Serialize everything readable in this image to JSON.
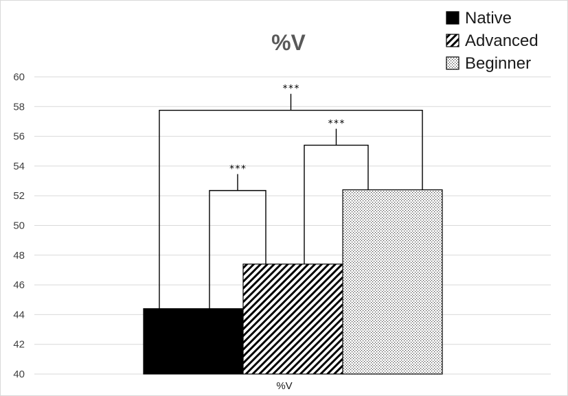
{
  "chart_data": {
    "type": "bar",
    "title": "%V",
    "categories": [
      "%V"
    ],
    "series": [
      {
        "name": "Native",
        "values": [
          44.4
        ],
        "pattern": "solid"
      },
      {
        "name": "Advanced",
        "values": [
          47.4
        ],
        "pattern": "diagonal-hatch"
      },
      {
        "name": "Beginner",
        "values": [
          52.4
        ],
        "pattern": "dots"
      }
    ],
    "ylim": [
      40,
      60
    ],
    "y_ticks": [
      40,
      42,
      44,
      46,
      48,
      50,
      52,
      54,
      56,
      58,
      60
    ],
    "xlabel": "",
    "ylabel": "",
    "grid": true,
    "legend_position": "top-right",
    "annotations": [
      {
        "text": "***",
        "between": [
          "Native",
          "Advanced"
        ],
        "level": 52.35
      },
      {
        "text": "***",
        "between": [
          "Advanced",
          "Beginner"
        ],
        "level": 55.4
      },
      {
        "text": "***",
        "between": [
          "Native",
          "Beginner"
        ],
        "level": 57.75
      }
    ]
  },
  "colors": {
    "bar_fill": "#000000",
    "grid": "#d9d9d9",
    "title": "#595959",
    "tick_text": "#404040"
  }
}
